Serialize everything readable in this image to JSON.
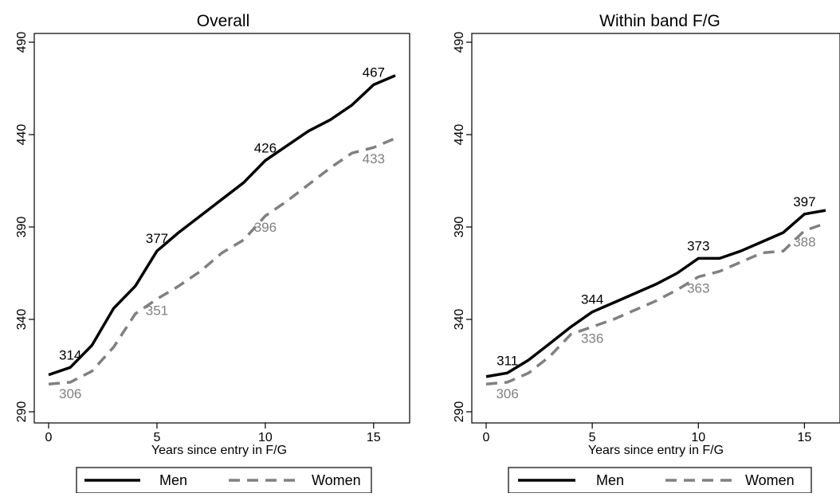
{
  "chart_data": [
    {
      "type": "line",
      "title": "Overall",
      "xlabel": "Years since entry in F/G",
      "ylabel": "",
      "xlim": [
        0,
        16
      ],
      "ylim": [
        290,
        490
      ],
      "x_ticks": [
        "0",
        "5",
        "10",
        "15"
      ],
      "y_ticks": [
        "290",
        "340",
        "390",
        "440",
        "490"
      ],
      "grid": false,
      "legend": "bottom",
      "series": [
        {
          "name": "Men",
          "color": "#000000",
          "style": "solid",
          "x": [
            0,
            1,
            2,
            3,
            4,
            5,
            6,
            7,
            8,
            9,
            10,
            11,
            12,
            13,
            14,
            15,
            16
          ],
          "y": [
            310,
            314,
            326,
            346,
            358,
            377,
            387,
            396,
            405,
            414,
            426,
            434,
            442,
            448,
            456,
            467,
            472
          ]
        },
        {
          "name": "Women",
          "color": "#808080",
          "style": "dashed",
          "x": [
            0,
            1,
            2,
            3,
            4,
            5,
            6,
            7,
            8,
            9,
            10,
            11,
            12,
            13,
            14,
            15,
            16
          ],
          "y": [
            305,
            306,
            312,
            325,
            343,
            351,
            358,
            366,
            376,
            383,
            396,
            404,
            413,
            422,
            430,
            433,
            438
          ]
        }
      ],
      "annotations": [
        {
          "series": "Men",
          "x": 1,
          "y": 314,
          "text": "314"
        },
        {
          "series": "Men",
          "x": 5,
          "y": 377,
          "text": "377"
        },
        {
          "series": "Men",
          "x": 10,
          "y": 426,
          "text": "426"
        },
        {
          "series": "Men",
          "x": 15,
          "y": 467,
          "text": "467"
        },
        {
          "series": "Women",
          "x": 1,
          "y": 306,
          "text": "306"
        },
        {
          "series": "Women",
          "x": 5,
          "y": 351,
          "text": "351"
        },
        {
          "series": "Women",
          "x": 10,
          "y": 396,
          "text": "396"
        },
        {
          "series": "Women",
          "x": 15,
          "y": 433,
          "text": "433"
        }
      ]
    },
    {
      "type": "line",
      "title": "Within band F/G",
      "xlabel": "Years since entry in F/G",
      "ylabel": "",
      "xlim": [
        0,
        16
      ],
      "ylim": [
        290,
        490
      ],
      "x_ticks": [
        "0",
        "5",
        "10",
        "15"
      ],
      "y_ticks": [
        "290",
        "340",
        "390",
        "440",
        "490"
      ],
      "grid": false,
      "legend": "bottom",
      "series": [
        {
          "name": "Men",
          "color": "#000000",
          "style": "solid",
          "x": [
            0,
            1,
            2,
            3,
            4,
            5,
            6,
            7,
            8,
            9,
            10,
            11,
            12,
            13,
            14,
            15,
            16
          ],
          "y": [
            309,
            311,
            318,
            327,
            336,
            344,
            349,
            354,
            359,
            365,
            373,
            373,
            377,
            382,
            387,
            397,
            399
          ]
        },
        {
          "name": "Women",
          "color": "#808080",
          "style": "dashed",
          "x": [
            0,
            1,
            2,
            3,
            4,
            5,
            6,
            7,
            8,
            9,
            10,
            11,
            12,
            13,
            14,
            15,
            16
          ],
          "y": [
            305,
            306,
            311,
            320,
            332,
            336,
            340,
            345,
            350,
            356,
            363,
            366,
            371,
            376,
            377,
            388,
            392
          ]
        }
      ],
      "annotations": [
        {
          "series": "Men",
          "x": 1,
          "y": 311,
          "text": "311"
        },
        {
          "series": "Men",
          "x": 5,
          "y": 344,
          "text": "344"
        },
        {
          "series": "Men",
          "x": 10,
          "y": 373,
          "text": "373"
        },
        {
          "series": "Men",
          "x": 15,
          "y": 397,
          "text": "397"
        },
        {
          "series": "Women",
          "x": 1,
          "y": 306,
          "text": "306"
        },
        {
          "series": "Women",
          "x": 5,
          "y": 336,
          "text": "336"
        },
        {
          "series": "Women",
          "x": 10,
          "y": 363,
          "text": "363"
        },
        {
          "series": "Women",
          "x": 15,
          "y": 388,
          "text": "388"
        }
      ]
    }
  ]
}
